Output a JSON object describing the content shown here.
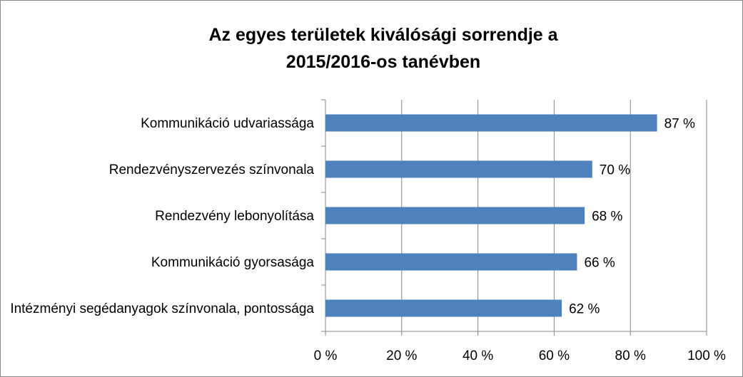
{
  "chart_data": {
    "type": "bar",
    "orientation": "horizontal",
    "title": "Az egyes területek kiválósági sorrendje a 2015/2016-os tanévben",
    "categories": [
      "Kommunikáció udvariassága",
      "Rendezvényszervezés színvonala",
      "Rendezvény lebonyolítása",
      "Kommunikáció gyorsasága",
      "Intézményi segédanyagok színvonala, pontossága"
    ],
    "values": [
      87,
      70,
      68,
      66,
      62
    ],
    "value_labels": [
      "87 %",
      "70 %",
      "68 %",
      "66 %",
      "62 %"
    ],
    "color": "#4f81bd",
    "xlim": [
      0,
      100
    ],
    "xticks": [
      {
        "value": 0,
        "label": "0 %"
      },
      {
        "value": 20,
        "label": "20 %"
      },
      {
        "value": 40,
        "label": "40 %"
      },
      {
        "value": 60,
        "label": "60 %"
      },
      {
        "value": 80,
        "label": "80 %"
      },
      {
        "value": 100,
        "label": "100 %"
      }
    ],
    "grid": true
  }
}
